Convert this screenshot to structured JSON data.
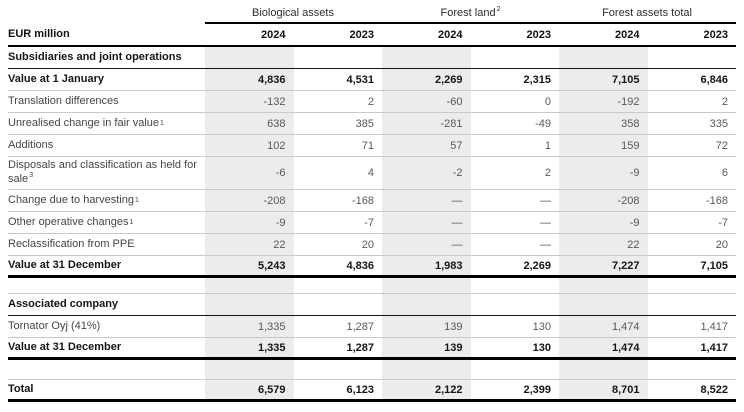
{
  "colors": {
    "stripe_bg": "#ececec",
    "rule_black": "#000000",
    "rule_gray": "#c9c9c9"
  },
  "table": {
    "unit_label": "EUR million",
    "col_groups": [
      {
        "label": "Biological assets",
        "sup": ""
      },
      {
        "label": "Forest land",
        "sup": "2"
      },
      {
        "label": "Forest assets total",
        "sup": ""
      }
    ],
    "year_cols": [
      "2024",
      "2023",
      "2024",
      "2023",
      "2024",
      "2023"
    ],
    "rows": [
      {
        "label": "Subsidiaries and joint operations",
        "values": [
          "",
          "",
          "",
          "",
          "",
          ""
        ]
      },
      {
        "label": "Value at 1 January",
        "values": [
          "4,836",
          "4,531",
          "2,269",
          "2,315",
          "7,105",
          "6,846"
        ]
      },
      {
        "label": "Translation differences",
        "values": [
          "-132",
          "2",
          "-60",
          "0",
          "-192",
          "2"
        ]
      },
      {
        "label": "Unrealised change in fair value",
        "sup": "1",
        "values": [
          "638",
          "385",
          "-281",
          "-49",
          "358",
          "335"
        ]
      },
      {
        "label": "Additions",
        "values": [
          "102",
          "71",
          "57",
          "1",
          "159",
          "72"
        ]
      },
      {
        "label": "Disposals and classification as held for sale",
        "sup": "3",
        "values": [
          "-6",
          "4",
          "-2",
          "2",
          "-9",
          "6"
        ]
      },
      {
        "label": "Change due to harvesting",
        "sup": "1",
        "values": [
          "-208",
          "-168",
          "—",
          "—",
          "-208",
          "-168"
        ]
      },
      {
        "label": "Other operative changes",
        "sup": "1",
        "values": [
          "-9",
          "-7",
          "—",
          "—",
          "-9",
          "-7"
        ]
      },
      {
        "label": "Reclassification from PPE",
        "values": [
          "22",
          "20",
          "—",
          "—",
          "22",
          "20"
        ]
      },
      {
        "label": "Value at 31 December",
        "values": [
          "5,243",
          "4,836",
          "1,983",
          "2,269",
          "7,227",
          "7,105"
        ]
      },
      {
        "label": "",
        "values": [
          "",
          "",
          "",
          "",
          "",
          ""
        ]
      },
      {
        "label": "Associated company",
        "values": [
          "",
          "",
          "",
          "",
          "",
          ""
        ]
      },
      {
        "label": "Tornator Oyj (41%)",
        "values": [
          "1,335",
          "1,287",
          "139",
          "130",
          "1,474",
          "1,417"
        ]
      },
      {
        "label": "Value at 31 December",
        "values": [
          "1,335",
          "1,287",
          "139",
          "130",
          "1,474",
          "1,417"
        ]
      },
      {
        "label": "",
        "values": [
          "",
          "",
          "",
          "",
          "",
          ""
        ]
      },
      {
        "label": "Total",
        "values": [
          "6,579",
          "6,123",
          "2,122",
          "2,399",
          "8,701",
          "8,522"
        ]
      }
    ]
  }
}
